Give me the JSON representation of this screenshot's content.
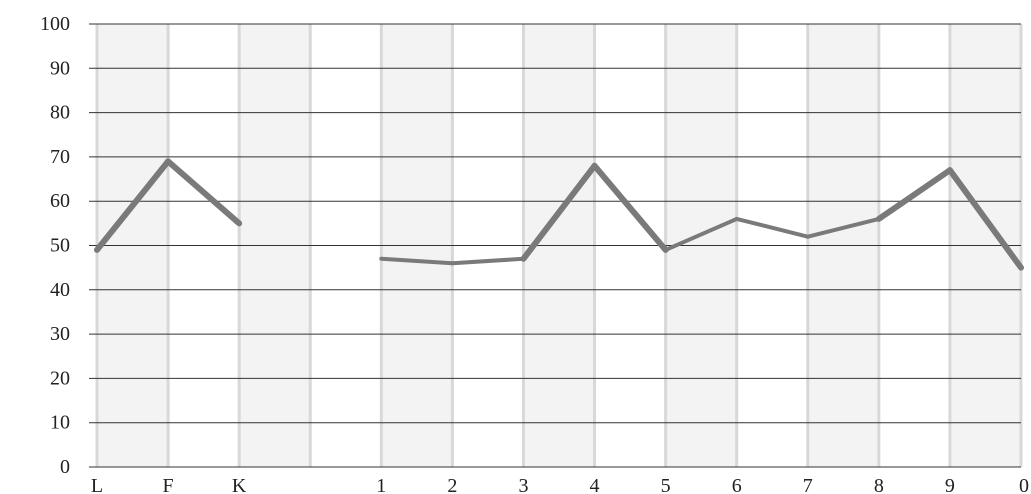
{
  "chart_data": {
    "type": "line",
    "title": "",
    "xlabel": "",
    "ylabel": "",
    "categories": [
      "L",
      "F",
      "K",
      "",
      "1",
      "2",
      "3",
      "4",
      "5",
      "6",
      "7",
      "8",
      "9",
      "0"
    ],
    "ylim": [
      0,
      100
    ],
    "yticks": [
      0,
      10,
      20,
      30,
      40,
      50,
      60,
      70,
      80,
      90,
      100
    ],
    "grid": true,
    "series": [
      {
        "values": [
          49,
          69,
          55,
          null,
          47,
          46,
          47,
          68,
          49,
          56,
          52,
          56,
          67,
          45
        ],
        "emphasized_segments": [
          [
            0,
            1
          ],
          [
            1,
            2
          ],
          [
            6,
            7
          ],
          [
            7,
            8
          ],
          [
            11,
            12
          ],
          [
            12,
            13
          ]
        ]
      }
    ],
    "colors": {
      "band_fill": "#f3f3f3",
      "band_line": "#d8d8d8",
      "gridline": "#333333",
      "series": "#7a7a7a"
    }
  }
}
